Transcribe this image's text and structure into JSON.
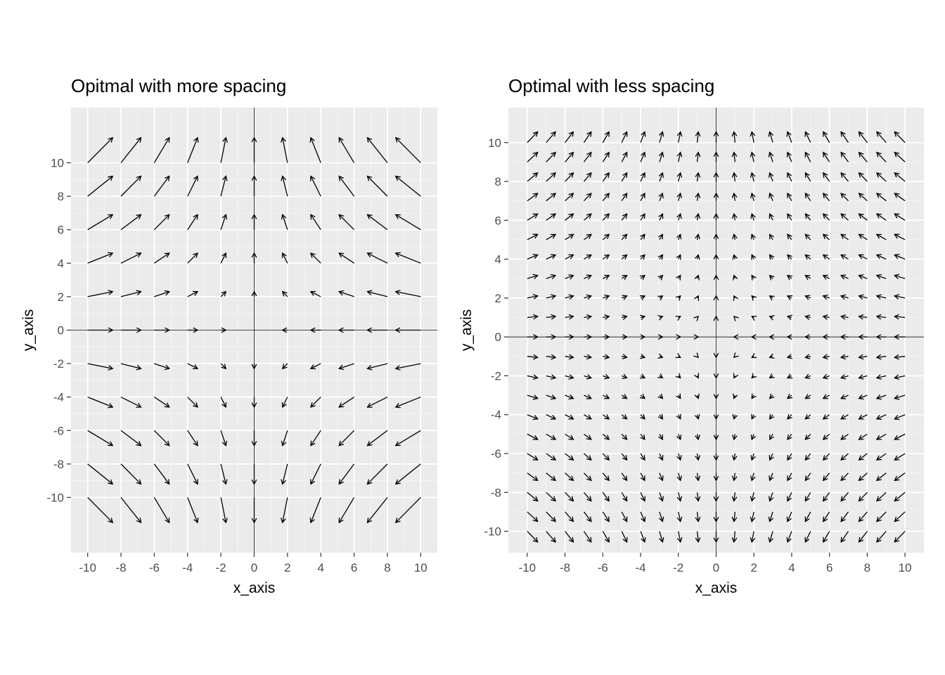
{
  "chart_data": [
    {
      "type": "quiver",
      "title": "Opitmal with more spacing",
      "xlabel": "x_axis",
      "ylabel": "y_axis",
      "xlim": [
        -11,
        11
      ],
      "ylim": [
        -13.3,
        13.3
      ],
      "x_ticks": [
        -10,
        -8,
        -6,
        -4,
        -2,
        0,
        2,
        4,
        6,
        8,
        10
      ],
      "y_ticks": [
        -10,
        -8,
        -6,
        -4,
        -2,
        0,
        2,
        4,
        6,
        8,
        10
      ],
      "x_tick_labels": [
        "-10",
        "-8",
        "-6",
        "-4",
        "-2",
        "0",
        "2",
        "4",
        "6",
        "8",
        "10"
      ],
      "y_tick_labels": [
        "-10",
        "-8",
        "-6",
        "-4",
        "-2",
        "0",
        "2",
        "4",
        "6",
        "8",
        "10"
      ],
      "grid": true,
      "reference_lines": {
        "x": 0,
        "y": 0
      },
      "field": {
        "u": "-x",
        "v": "y",
        "length_scale": 0.15
      },
      "grid_points": {
        "x_from": -10,
        "x_to": 10,
        "x_step": 2,
        "y_from": -10,
        "y_to": 10,
        "y_step": 2
      },
      "colors": {
        "panel": "#ebebeb",
        "grid_major": "#ffffff",
        "grid_minor": "#f4f4f4",
        "arrow": "#000000",
        "ref_line": "#000000"
      }
    },
    {
      "type": "quiver",
      "title": "Optimal with less spacing",
      "xlabel": "x_axis",
      "ylabel": "y_axis",
      "xlim": [
        -11,
        11
      ],
      "ylim": [
        -11.1,
        11.8
      ],
      "x_ticks": [
        -10,
        -8,
        -6,
        -4,
        -2,
        0,
        2,
        4,
        6,
        8,
        10
      ],
      "y_ticks": [
        -10,
        -8,
        -6,
        -4,
        -2,
        0,
        2,
        4,
        6,
        8,
        10
      ],
      "x_tick_labels": [
        "-10",
        "-8",
        "-6",
        "-4",
        "-2",
        "0",
        "2",
        "4",
        "6",
        "8",
        "10"
      ],
      "y_tick_labels": [
        "-10",
        "-8",
        "-6",
        "-4",
        "-2",
        "0",
        "2",
        "4",
        "6",
        "8",
        "10"
      ],
      "grid": true,
      "reference_lines": {
        "x": 0,
        "y": 0
      },
      "field": {
        "u": "-x",
        "v": "y",
        "length_scale": 0.055
      },
      "grid_points": {
        "x_from": -10,
        "x_to": 10,
        "x_step": 1,
        "y_from": -10,
        "y_to": 10,
        "y_step": 1
      },
      "colors": {
        "panel": "#ebebeb",
        "grid_major": "#ffffff",
        "grid_minor": "#f4f4f4",
        "arrow": "#000000",
        "ref_line": "#000000"
      }
    }
  ]
}
